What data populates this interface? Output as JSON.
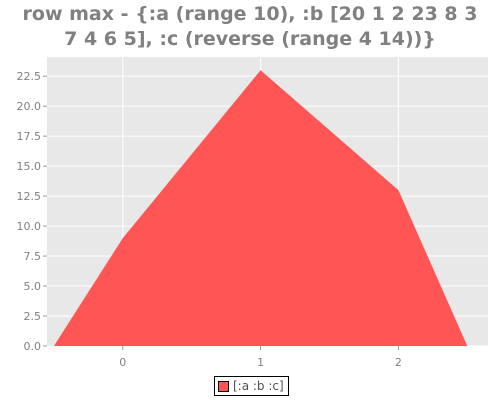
{
  "chart_data": {
    "type": "area",
    "title_lines": [
      "row max - {:a (range 10), :b [20 1 2 23 8 3",
      "7 4 6 5], :c (reverse (range 4 14))}"
    ],
    "x": [
      -0.5,
      0,
      1,
      2,
      2.5
    ],
    "series": [
      {
        "name": "[:a :b :c]",
        "color": "#ff5555",
        "values": [
          0,
          9,
          23,
          13,
          0
        ]
      }
    ],
    "x_ticks": [
      0,
      1,
      2
    ],
    "y_ticks": [
      0.0,
      2.5,
      5.0,
      7.5,
      10.0,
      12.5,
      15.0,
      17.5,
      20.0,
      22.5
    ],
    "xlim": [
      -0.55,
      2.65
    ],
    "ylim": [
      0,
      24.1
    ],
    "background": "#e8e8e8",
    "grid": true,
    "legend_position": "bottom-center"
  }
}
